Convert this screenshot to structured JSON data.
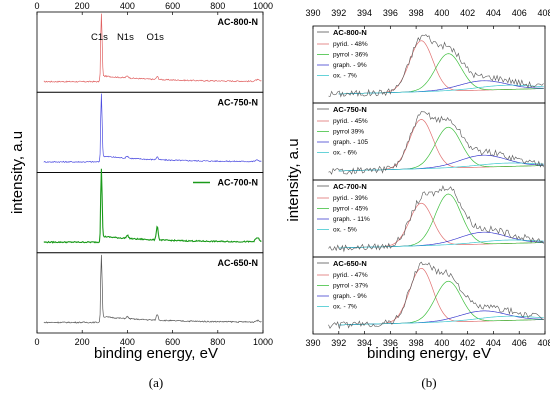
{
  "chart_data": [
    {
      "type": "line",
      "panel": "(a)",
      "xlabel": "binding energy, eV",
      "ylabel": "intensity, a.u",
      "xlim": [
        0,
        1000
      ],
      "xticks": [
        0,
        200,
        400,
        600,
        800,
        1000
      ],
      "peak_labels": [
        {
          "text": "C1s",
          "x": 285
        },
        {
          "text": "N1s",
          "x": 400
        },
        {
          "text": "O1s",
          "x": 532
        }
      ],
      "series": [
        {
          "name": "AC-800-N",
          "color": "#e06060",
          "legend_line": false
        },
        {
          "name": "AC-750-N",
          "color": "#4b4be0",
          "legend_line": false
        },
        {
          "name": "AC-700-N",
          "color": "#1a9a1a",
          "legend_line": true
        },
        {
          "name": "AC-650-N",
          "color": "#555555",
          "legend_line": false
        }
      ]
    },
    {
      "type": "line",
      "panel": "(b)",
      "xlabel": "binding energy, eV",
      "ylabel": "intensity, a.u",
      "xlim": [
        390,
        408
      ],
      "xticks": [
        390,
        392,
        394,
        396,
        398,
        400,
        402,
        404,
        406,
        408
      ],
      "component_colors": {
        "data": "#555555",
        "pyrid": "#e07070",
        "pyrrol": "#40c040",
        "graph": "#4040d0",
        "ox": "#40c8d0"
      },
      "subplots": [
        {
          "title": "AC-800-N",
          "legend": [
            "pyrid. - 48%",
            "pyrrol - 36%",
            "graph. - 9%",
            "ox. - 7%"
          ]
        },
        {
          "title": "AC-750-N",
          "legend": [
            "pyrid. - 45%",
            "pyrrol 39%",
            "graph. - 105",
            "ox. - 6%"
          ]
        },
        {
          "title": "AC-700-N",
          "legend": [
            "pyrid. - 39%",
            "pyrrol - 45%",
            "graph. - 11%",
            "ox. - 5%"
          ]
        },
        {
          "title": "AC-650-N",
          "legend": [
            "pyrid. - 47%",
            "pyrrol - 37%",
            "graph. - 9%",
            "ox. - 7%"
          ]
        }
      ]
    }
  ]
}
